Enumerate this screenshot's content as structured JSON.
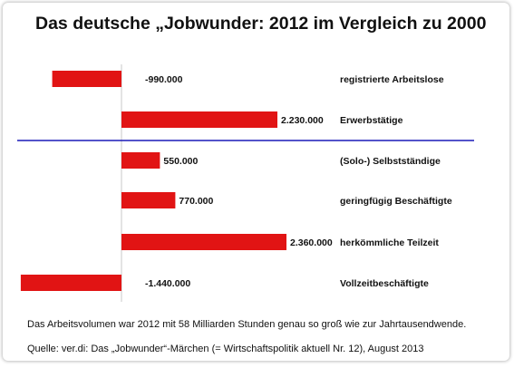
{
  "title": "Das deutsche „Jobwunder: 2012 im Vergleich zu 2000",
  "note": "Das Arbeitsvolumen war 2012 mit 58 Milliarden Stunden genau so groß wie zur Jahrtausendwende.",
  "source": "Quelle: ver.di: Das „Jobwunder“-Märchen (= Wirtschaftspolitik aktuell Nr. 12), August 2013",
  "colors": {
    "bar": "#e11414",
    "divider": "#1a1ab8",
    "axis": "#c8c8c8"
  },
  "chart_data": {
    "type": "bar",
    "orientation": "horizontal",
    "title": "Das deutsche „Jobwunder: 2012 im Vergleich zu 2000",
    "categories": [
      "registrierte Arbeitslose",
      "Erwerbstätige",
      "(Solo-) Selbstständige",
      "geringfügig Beschäftigte",
      "herkömmliche Teilzeit",
      "Vollzeitbeschäftigte"
    ],
    "values": [
      -990000,
      2230000,
      550000,
      770000,
      2360000,
      -1440000
    ],
    "value_labels": [
      "-990.000",
      "2.230.000",
      "550.000",
      "770.000",
      "2.360.000",
      "-1.440.000"
    ],
    "xlim": [
      -1440000,
      2360000
    ],
    "grid": false,
    "legend": "none"
  }
}
